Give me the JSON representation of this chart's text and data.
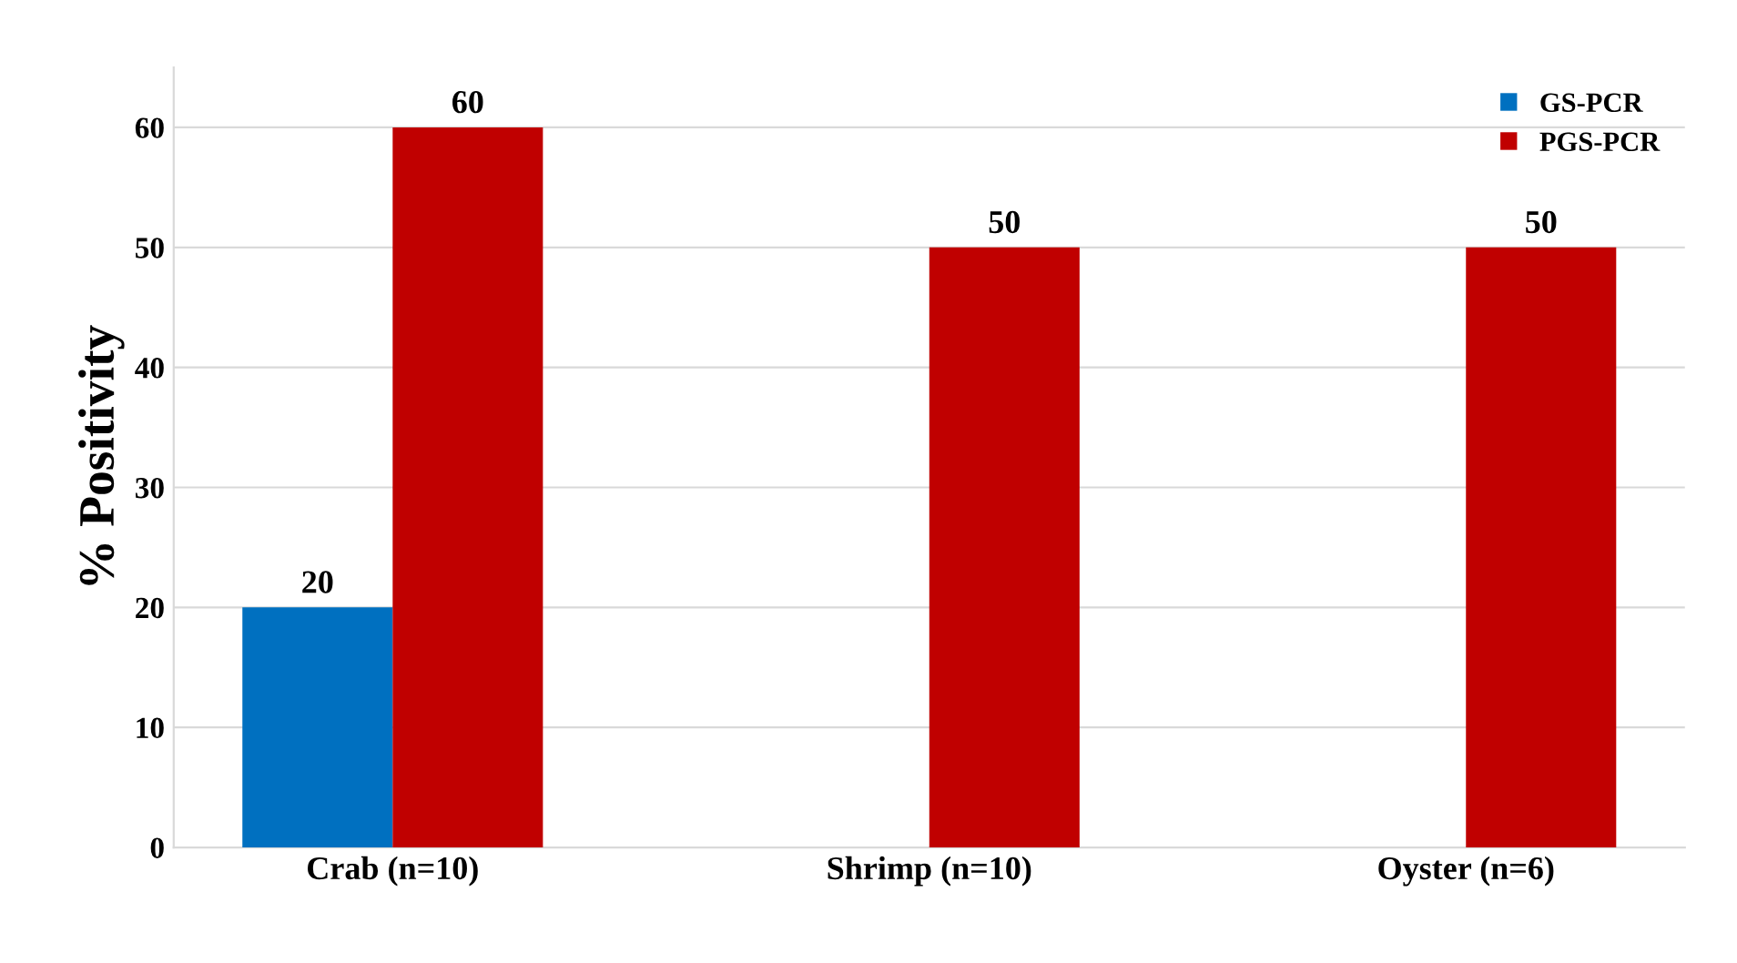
{
  "chart_data": {
    "type": "bar",
    "ylabel": "% Positivity",
    "categories": [
      "Crab (n=10)",
      "Shrimp (n=10)",
      "Oyster (n=6)"
    ],
    "series": [
      {
        "name": "GS-PCR",
        "color": "#0070c0",
        "values": [
          20,
          null,
          null
        ]
      },
      {
        "name": "PGS-PCR",
        "color": "#c00000",
        "values": [
          60,
          50,
          50
        ]
      }
    ],
    "ylim": [
      0,
      65
    ],
    "yticks": [
      0,
      10,
      20,
      30,
      40,
      50,
      60
    ],
    "grid": "y",
    "legend": "top right",
    "data_labels": true
  }
}
